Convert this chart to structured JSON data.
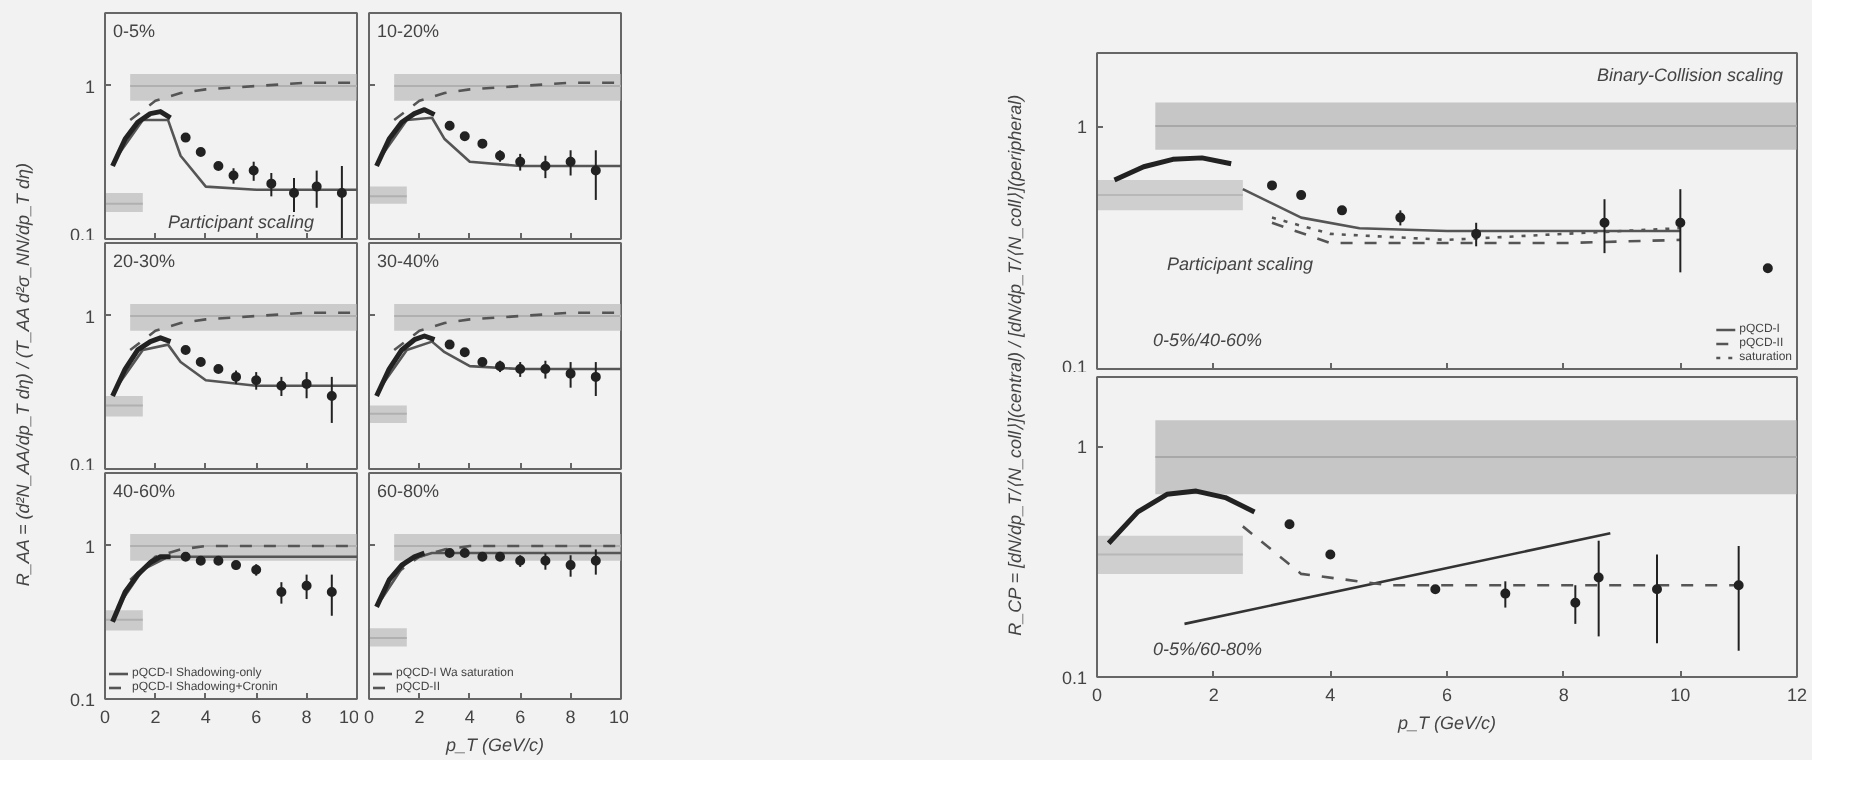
{
  "chart_data": [
    {
      "type": "scatter",
      "title": "0-5%",
      "log": "y",
      "xlim": [
        0,
        10
      ],
      "ylim": [
        0.1,
        3
      ],
      "xticks": [
        0,
        2,
        4,
        6,
        8,
        10
      ],
      "yticks": [
        0.1,
        1
      ],
      "tick_labels": "y",
      "annotations": [
        "Participant scaling"
      ],
      "series": [
        {
          "type": "line",
          "color": "#b0b0b0",
          "x": [
            1,
            10
          ],
          "values": [
            1.0,
            1.0
          ],
          "lower": [
            0.8,
            0.8
          ],
          "upper": [
            1.2,
            1.2
          ]
        },
        {
          "type": "line",
          "color": "#b0b0b0",
          "x": [
            0,
            1.5
          ],
          "values": [
            0.17,
            0.17
          ],
          "lower": [
            0.15,
            0.15
          ],
          "upper": [
            0.2,
            0.2
          ]
        },
        {
          "type": "line",
          "color": "#555555",
          "line_style": "dashed",
          "x": [
            1,
            2,
            3,
            4,
            6,
            8,
            10
          ],
          "values": [
            0.6,
            0.8,
            0.9,
            0.95,
            1.0,
            1.05,
            1.05
          ]
        },
        {
          "type": "line",
          "color": "#555555",
          "line_style": "solid",
          "x": [
            0.5,
            1.5,
            2.5,
            3,
            4,
            6,
            8,
            10
          ],
          "values": [
            0.35,
            0.6,
            0.6,
            0.35,
            0.22,
            0.21,
            0.21,
            0.21
          ]
        },
        {
          "type": "line",
          "color": "#222222",
          "x": [
            0.3,
            0.8,
            1.3,
            1.8,
            2.2,
            2.6
          ],
          "values": [
            0.3,
            0.45,
            0.58,
            0.66,
            0.68,
            0.62
          ]
        },
        {
          "color": "#222222",
          "marker": "circle",
          "x": [
            3.2,
            3.8,
            4.5,
            5.1,
            5.9,
            6.6,
            7.5,
            8.4,
            9.4
          ],
          "values": [
            0.46,
            0.37,
            0.3,
            0.26,
            0.28,
            0.23,
            0.2,
            0.22,
            0.2
          ],
          "errors": [
            null,
            null,
            null,
            0.03,
            0.04,
            0.04,
            0.05,
            0.06,
            0.1
          ]
        }
      ]
    },
    {
      "type": "scatter",
      "title": "10-20%",
      "log": "y",
      "xlim": [
        0,
        10
      ],
      "ylim": [
        0.1,
        3
      ],
      "xticks": [
        0,
        2,
        4,
        6,
        8,
        10
      ],
      "yticks": [
        0.1,
        1
      ],
      "tick_labels": false,
      "series": [
        {
          "type": "line",
          "color": "#b0b0b0",
          "x": [
            1,
            10
          ],
          "values": [
            1.0,
            1.0
          ],
          "lower": [
            0.8,
            0.8
          ],
          "upper": [
            1.2,
            1.2
          ]
        },
        {
          "type": "line",
          "color": "#b0b0b0",
          "x": [
            0,
            1.5
          ],
          "values": [
            0.19,
            0.19
          ],
          "lower": [
            0.17,
            0.17
          ],
          "upper": [
            0.22,
            0.22
          ]
        },
        {
          "type": "line",
          "color": "#555555",
          "line_style": "dashed",
          "x": [
            1,
            2,
            3,
            4,
            6,
            8,
            10
          ],
          "values": [
            0.6,
            0.8,
            0.9,
            0.95,
            1.0,
            1.05,
            1.05
          ]
        },
        {
          "type": "line",
          "color": "#555555",
          "line_style": "solid",
          "x": [
            0.5,
            1.5,
            2.5,
            3,
            4,
            6,
            8,
            10
          ],
          "values": [
            0.35,
            0.6,
            0.62,
            0.45,
            0.32,
            0.3,
            0.3,
            0.3
          ]
        },
        {
          "type": "line",
          "color": "#222222",
          "x": [
            0.3,
            0.8,
            1.3,
            1.8,
            2.2,
            2.6
          ],
          "values": [
            0.3,
            0.45,
            0.58,
            0.66,
            0.7,
            0.65
          ]
        },
        {
          "color": "#222222",
          "marker": "circle",
          "x": [
            3.2,
            3.8,
            4.5,
            5.2,
            6,
            7,
            8,
            9
          ],
          "values": [
            0.55,
            0.47,
            0.42,
            0.35,
            0.32,
            0.3,
            0.32,
            0.28
          ],
          "errors": [
            null,
            null,
            null,
            0.03,
            0.04,
            0.05,
            0.06,
            0.1
          ]
        }
      ]
    },
    {
      "type": "scatter",
      "title": "20-30%",
      "ylabel": "R_AA = (d²N_AA/dp_T dη) / (T_AA d²σ_NN/dp_T dη)",
      "log": "y",
      "xlim": [
        0,
        10
      ],
      "ylim": [
        0.1,
        3
      ],
      "xticks": [
        0,
        2,
        4,
        6,
        8,
        10
      ],
      "yticks": [
        0.1,
        1
      ],
      "tick_labels": "y",
      "series": [
        {
          "type": "line",
          "color": "#b0b0b0",
          "x": [
            1,
            10
          ],
          "values": [
            1.0,
            1.0
          ],
          "lower": [
            0.8,
            0.8
          ],
          "upper": [
            1.2,
            1.2
          ]
        },
        {
          "type": "line",
          "color": "#b0b0b0",
          "x": [
            0,
            1.5
          ],
          "values": [
            0.26,
            0.26
          ],
          "lower": [
            0.22,
            0.22
          ],
          "upper": [
            0.3,
            0.3
          ]
        },
        {
          "type": "line",
          "color": "#555555",
          "line_style": "dashed",
          "x": [
            1,
            2,
            3,
            4,
            6,
            8,
            10
          ],
          "values": [
            0.6,
            0.8,
            0.9,
            0.95,
            1.0,
            1.05,
            1.05
          ]
        },
        {
          "type": "line",
          "color": "#555555",
          "line_style": "solid",
          "x": [
            0.5,
            1.5,
            2.5,
            3,
            4,
            6,
            8,
            10
          ],
          "values": [
            0.35,
            0.6,
            0.65,
            0.5,
            0.38,
            0.35,
            0.35,
            0.35
          ]
        },
        {
          "type": "line",
          "color": "#222222",
          "x": [
            0.3,
            0.8,
            1.3,
            1.8,
            2.2,
            2.6
          ],
          "values": [
            0.3,
            0.45,
            0.6,
            0.68,
            0.72,
            0.68
          ]
        },
        {
          "color": "#222222",
          "marker": "circle",
          "x": [
            3.2,
            3.8,
            4.5,
            5.2,
            6,
            7,
            8,
            9
          ],
          "values": [
            0.6,
            0.5,
            0.45,
            0.4,
            0.38,
            0.35,
            0.36,
            0.3
          ],
          "errors": [
            null,
            null,
            null,
            0.04,
            0.05,
            0.05,
            0.07,
            0.1
          ]
        }
      ]
    },
    {
      "type": "scatter",
      "title": "30-40%",
      "log": "y",
      "xlim": [
        0,
        10
      ],
      "ylim": [
        0.1,
        3
      ],
      "xticks": [
        0,
        2,
        4,
        6,
        8,
        10
      ],
      "yticks": [
        0.1,
        1
      ],
      "tick_labels": false,
      "series": [
        {
          "type": "line",
          "color": "#b0b0b0",
          "x": [
            1,
            10
          ],
          "values": [
            1.0,
            1.0
          ],
          "lower": [
            0.8,
            0.8
          ],
          "upper": [
            1.2,
            1.2
          ]
        },
        {
          "type": "line",
          "color": "#b0b0b0",
          "x": [
            0,
            1.5
          ],
          "values": [
            0.23,
            0.23
          ],
          "lower": [
            0.2,
            0.2
          ],
          "upper": [
            0.26,
            0.26
          ]
        },
        {
          "type": "line",
          "color": "#555555",
          "line_style": "dashed",
          "x": [
            1,
            2,
            3,
            4,
            6,
            8,
            10
          ],
          "values": [
            0.6,
            0.8,
            0.9,
            0.95,
            1.0,
            1.05,
            1.05
          ]
        },
        {
          "type": "line",
          "color": "#555555",
          "line_style": "solid",
          "x": [
            0.5,
            1.5,
            2.5,
            3,
            4,
            6,
            8,
            10
          ],
          "values": [
            0.35,
            0.6,
            0.68,
            0.58,
            0.47,
            0.45,
            0.45,
            0.45
          ]
        },
        {
          "type": "line",
          "color": "#222222",
          "x": [
            0.3,
            0.8,
            1.3,
            1.8,
            2.2,
            2.6
          ],
          "values": [
            0.3,
            0.45,
            0.6,
            0.7,
            0.74,
            0.7
          ]
        },
        {
          "color": "#222222",
          "marker": "circle",
          "x": [
            3.2,
            3.8,
            4.5,
            5.2,
            6,
            7,
            8,
            9
          ],
          "values": [
            0.65,
            0.58,
            0.5,
            0.47,
            0.45,
            0.45,
            0.42,
            0.4
          ],
          "errors": [
            null,
            null,
            null,
            0.04,
            0.05,
            0.06,
            0.08,
            0.1
          ]
        }
      ]
    },
    {
      "type": "scatter",
      "title": "40-60%",
      "log": "y",
      "xlim": [
        0,
        10
      ],
      "ylim": [
        0.1,
        3
      ],
      "xticks": [
        0,
        2,
        4,
        6,
        8,
        10
      ],
      "yticks": [
        0.1,
        1
      ],
      "legend": "bottom left",
      "series": [
        {
          "type": "line",
          "color": "#b0b0b0",
          "x": [
            1,
            10
          ],
          "values": [
            1.0,
            1.0
          ],
          "lower": [
            0.8,
            0.8
          ],
          "upper": [
            1.2,
            1.2
          ]
        },
        {
          "type": "line",
          "color": "#b0b0b0",
          "x": [
            0,
            1.5
          ],
          "values": [
            0.33,
            0.33
          ],
          "lower": [
            0.28,
            0.28
          ],
          "upper": [
            0.38,
            0.38
          ]
        },
        {
          "type": "line",
          "name": "pQCD-I Shadowing-only",
          "color": "#555555",
          "line_style": "solid",
          "x": [
            0.5,
            1.5,
            2.5,
            3,
            4,
            6,
            8,
            10
          ],
          "values": [
            0.4,
            0.7,
            0.85,
            0.85,
            0.85,
            0.85,
            0.85,
            0.85
          ]
        },
        {
          "type": "line",
          "name": "pQCD-I Shadowing+Cronin",
          "color": "#555555",
          "line_style": "dashed",
          "x": [
            1,
            2,
            3,
            4,
            6,
            8,
            10
          ],
          "values": [
            0.6,
            0.85,
            0.95,
            1.0,
            1.0,
            1.0,
            1.0
          ]
        },
        {
          "type": "line",
          "color": "#222222",
          "x": [
            0.3,
            0.8,
            1.3,
            1.8,
            2.2,
            2.6
          ],
          "values": [
            0.32,
            0.5,
            0.65,
            0.78,
            0.85,
            0.85
          ]
        },
        {
          "color": "#222222",
          "marker": "circle",
          "x": [
            3.2,
            3.8,
            4.5,
            5.2,
            6,
            7,
            8,
            9
          ],
          "values": [
            0.85,
            0.8,
            0.8,
            0.75,
            0.7,
            0.5,
            0.55,
            0.5
          ],
          "errors": [
            null,
            null,
            null,
            0.05,
            0.06,
            0.08,
            0.1,
            0.15
          ]
        }
      ]
    },
    {
      "type": "scatter",
      "title": "60-80%",
      "xlabel": "p_T (GeV/c)",
      "log": "y",
      "xlim": [
        0,
        10
      ],
      "ylim": [
        0.1,
        3
      ],
      "xticks": [
        0,
        2,
        4,
        6,
        8,
        10
      ],
      "yticks": [
        0.1,
        1
      ],
      "tick_labels": "x",
      "legend": "bottom left",
      "series": [
        {
          "type": "line",
          "color": "#b0b0b0",
          "x": [
            1,
            10
          ],
          "values": [
            1.0,
            1.0
          ],
          "lower": [
            0.8,
            0.8
          ],
          "upper": [
            1.2,
            1.2
          ]
        },
        {
          "type": "line",
          "color": "#b0b0b0",
          "x": [
            0,
            1.5
          ],
          "values": [
            0.25,
            0.25
          ],
          "lower": [
            0.22,
            0.22
          ],
          "upper": [
            0.29,
            0.29
          ]
        },
        {
          "type": "line",
          "name": "pQCD-I Wa saturation",
          "color": "#555555",
          "line_style": "solid",
          "x": [
            0.5,
            1.5,
            2.5,
            4,
            6,
            8,
            10
          ],
          "values": [
            0.45,
            0.8,
            0.9,
            0.9,
            0.9,
            0.9,
            0.9
          ]
        },
        {
          "type": "line",
          "name": "pQCD-II",
          "color": "#555555",
          "line_style": "dashed",
          "x": [
            1,
            2,
            3,
            4,
            6,
            8,
            10
          ],
          "values": [
            0.65,
            0.85,
            0.95,
            1.0,
            1.0,
            1.0,
            1.0
          ]
        },
        {
          "type": "line",
          "color": "#222222",
          "x": [
            0.3,
            0.8,
            1.3,
            1.8,
            2.2
          ],
          "values": [
            0.4,
            0.6,
            0.75,
            0.85,
            0.9
          ]
        },
        {
          "color": "#222222",
          "marker": "circle",
          "x": [
            3.2,
            3.8,
            4.5,
            5.2,
            6,
            7,
            8,
            9
          ],
          "values": [
            0.9,
            0.9,
            0.85,
            0.85,
            0.8,
            0.8,
            0.75,
            0.8
          ],
          "errors": [
            null,
            null,
            null,
            0.05,
            0.07,
            0.1,
            0.12,
            0.15
          ]
        }
      ]
    },
    {
      "type": "scatter",
      "ylabel": "R_CP = [dN/dp_T/⟨N_coll⟩](central) / [dN/dp_T/⟨N_coll⟩](peripheral)",
      "log": "y",
      "xlim": [
        0,
        12
      ],
      "ylim": [
        0.1,
        2
      ],
      "xticks": [
        0,
        2,
        4,
        6,
        8,
        10,
        12
      ],
      "yticks": [
        0.1,
        1
      ],
      "tick_labels": "y",
      "legend": "bottom right",
      "annotations": [
        "Binary-Collision scaling",
        "Participant scaling",
        "0-5%/40-60%"
      ],
      "series": [
        {
          "type": "line",
          "color": "#a8a8a8",
          "x": [
            1,
            12
          ],
          "values": [
            1.0,
            1.0
          ],
          "lower": [
            0.8,
            0.8
          ],
          "upper": [
            1.25,
            1.25
          ]
        },
        {
          "type": "line",
          "color": "#b8b8b8",
          "x": [
            0,
            2.5
          ],
          "values": [
            0.52,
            0.52
          ],
          "lower": [
            0.45,
            0.45
          ],
          "upper": [
            0.6,
            0.6
          ]
        },
        {
          "type": "line",
          "name": "pQCD-I",
          "color": "#555555",
          "line_style": "solid",
          "x": [
            2.5,
            3.5,
            4.5,
            6,
            8,
            10
          ],
          "values": [
            0.55,
            0.42,
            0.38,
            0.37,
            0.37,
            0.37
          ]
        },
        {
          "type": "line",
          "name": "pQCD-II",
          "color": "#555555",
          "line_style": "dashed",
          "x": [
            3,
            4,
            6,
            8,
            10
          ],
          "values": [
            0.4,
            0.33,
            0.33,
            0.33,
            0.34
          ]
        },
        {
          "type": "line",
          "name": "saturation",
          "color": "#555555",
          "line_style": "dotted",
          "x": [
            3,
            4,
            6,
            8,
            10
          ],
          "values": [
            0.42,
            0.36,
            0.34,
            0.36,
            0.38
          ]
        },
        {
          "type": "line",
          "color": "#222222",
          "x": [
            0.3,
            0.8,
            1.3,
            1.8,
            2.3
          ],
          "values": [
            0.6,
            0.68,
            0.73,
            0.74,
            0.7
          ]
        },
        {
          "color": "#222222",
          "marker": "circle",
          "x": [
            3.0,
            3.5,
            4.2,
            5.2,
            6.5,
            8.7,
            10.0,
            11.5
          ],
          "values": [
            0.57,
            0.52,
            0.45,
            0.42,
            0.36,
            0.4,
            0.4,
            0.26
          ],
          "errors": [
            null,
            null,
            null,
            0.03,
            0.04,
            0.1,
            0.15,
            null
          ]
        }
      ]
    },
    {
      "type": "scatter",
      "xlabel": "p_T (GeV/c)",
      "log": "y",
      "xlim": [
        0,
        12
      ],
      "ylim": [
        0.1,
        2
      ],
      "xticks": [
        0,
        2,
        4,
        6,
        8,
        10,
        12
      ],
      "yticks": [
        0.1,
        1
      ],
      "annotations": [
        "0-5%/60-80%"
      ],
      "series": [
        {
          "type": "line",
          "color": "#a8a8a8",
          "x": [
            1,
            12
          ],
          "values": [
            0.9,
            0.9
          ],
          "lower": [
            0.62,
            0.62
          ],
          "upper": [
            1.3,
            1.3
          ]
        },
        {
          "type": "line",
          "color": "#b8b8b8",
          "x": [
            0,
            2.5
          ],
          "values": [
            0.34,
            0.34
          ],
          "lower": [
            0.28,
            0.28
          ],
          "upper": [
            0.41,
            0.41
          ]
        },
        {
          "type": "line",
          "color": "#333333",
          "line_style": "solid",
          "x": [
            1.5,
            8.8
          ],
          "values": [
            0.17,
            0.42
          ]
        },
        {
          "type": "line",
          "color": "#555555",
          "line_style": "dashed",
          "x": [
            2.5,
            3.5,
            5,
            7,
            9,
            11
          ],
          "values": [
            0.45,
            0.28,
            0.25,
            0.25,
            0.25,
            0.25
          ]
        },
        {
          "type": "line",
          "color": "#222222",
          "x": [
            0.2,
            0.7,
            1.2,
            1.7,
            2.2,
            2.7
          ],
          "values": [
            0.38,
            0.52,
            0.62,
            0.64,
            0.6,
            0.52
          ]
        },
        {
          "color": "#222222",
          "marker": "circle",
          "x": [
            3.3,
            4.0,
            5.8,
            7.0,
            8.2,
            8.6,
            9.6,
            11.0
          ],
          "values": [
            0.46,
            0.34,
            0.24,
            0.23,
            0.21,
            0.27,
            0.24,
            0.25
          ],
          "errors": [
            null,
            null,
            null,
            0.03,
            0.04,
            0.12,
            0.1,
            0.12
          ]
        }
      ]
    }
  ]
}
